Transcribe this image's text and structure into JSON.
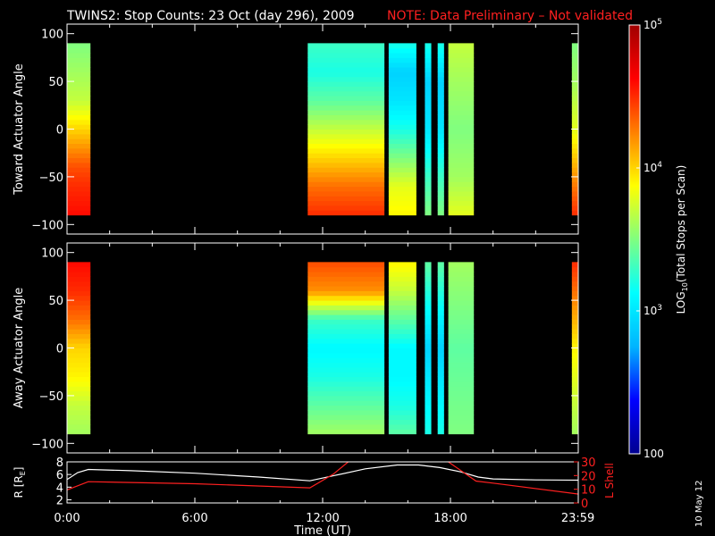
{
  "header": {
    "title": "TWINS2: Stop Counts: 23 Oct (day 296), 2009",
    "note": "NOTE: Data Preliminary – Not validated"
  },
  "side_label": "10 May 12",
  "colorbar": {
    "label": "LOG10(Total Stops per Scan)",
    "label_parts": [
      "LOG",
      "10",
      "(Total Stops per Scan)"
    ],
    "ticks": [
      {
        "value": 100,
        "label": "100"
      },
      {
        "value": 1000,
        "label": "10^3"
      },
      {
        "value": 10000,
        "label": "10^4"
      },
      {
        "value": 100000,
        "label": "10^5"
      }
    ],
    "range": [
      100,
      100000
    ],
    "scale": "log",
    "colormap": [
      "#00008f",
      "#0000ff",
      "#00b4ff",
      "#00ffff",
      "#80ff80",
      "#ffff00",
      "#ff8000",
      "#ff0000",
      "#a00000"
    ]
  },
  "chart_data": [
    {
      "type": "heatmap",
      "ylabel": "Toward Actuator Angle",
      "ylim": [
        -110,
        110
      ],
      "yticks": [
        100,
        50,
        0,
        -50,
        -100
      ],
      "xlim": [
        0,
        24
      ],
      "data_angle_range": [
        -90,
        90
      ],
      "blocks": [
        {
          "x0": 0.0,
          "x1": 1.1,
          "profile": [
            [
              -90,
              4.6
            ],
            [
              -60,
              4.5
            ],
            [
              -40,
              4.4
            ],
            [
              -20,
              4.2
            ],
            [
              0,
              4.0
            ],
            [
              30,
              3.7
            ],
            [
              60,
              3.6
            ],
            [
              90,
              3.5
            ]
          ]
        },
        {
          "x0": 11.3,
          "x1": 14.9,
          "profile": [
            [
              -90,
              4.5
            ],
            [
              -60,
              4.3
            ],
            [
              -40,
              4.1
            ],
            [
              -20,
              3.9
            ],
            [
              0,
              3.7
            ],
            [
              30,
              3.4
            ],
            [
              60,
              3.2
            ],
            [
              90,
              3.3
            ]
          ]
        },
        {
          "x0": 15.1,
          "x1": 16.4,
          "profile": [
            [
              -90,
              3.9
            ],
            [
              -60,
              3.8
            ],
            [
              -40,
              3.6
            ],
            [
              -20,
              3.4
            ],
            [
              0,
              3.2
            ],
            [
              30,
              3.0
            ],
            [
              60,
              2.9
            ],
            [
              90,
              3.2
            ]
          ]
        },
        {
          "x0": 16.8,
          "x1": 17.1,
          "profile": [
            [
              -90,
              3.5
            ],
            [
              -50,
              3.3
            ],
            [
              0,
              3.0
            ],
            [
              50,
              2.9
            ],
            [
              90,
              3.2
            ]
          ]
        },
        {
          "x0": 17.4,
          "x1": 17.7,
          "profile": [
            [
              -90,
              3.5
            ],
            [
              -50,
              3.3
            ],
            [
              0,
              3.0
            ],
            [
              50,
              2.9
            ],
            [
              90,
              3.2
            ]
          ]
        },
        {
          "x0": 17.9,
          "x1": 19.1,
          "profile": [
            [
              -90,
              3.8
            ],
            [
              -50,
              3.6
            ],
            [
              0,
              3.5
            ],
            [
              50,
              3.6
            ],
            [
              90,
              3.7
            ]
          ]
        },
        {
          "x0": 23.7,
          "x1": 24.0,
          "profile": [
            [
              -90,
              4.5
            ],
            [
              -50,
              4.2
            ],
            [
              0,
              3.8
            ],
            [
              50,
              3.6
            ],
            [
              90,
              3.5
            ]
          ]
        }
      ]
    },
    {
      "type": "heatmap",
      "ylabel": "Away Actuator Angle",
      "ylim": [
        -110,
        110
      ],
      "yticks": [
        100,
        50,
        0,
        -50,
        -100
      ],
      "xlim": [
        0,
        24
      ],
      "data_angle_range": [
        -90,
        90
      ],
      "blocks": [
        {
          "x0": 0.0,
          "x1": 1.1,
          "profile": [
            [
              -90,
              3.6
            ],
            [
              -60,
              3.7
            ],
            [
              -30,
              3.9
            ],
            [
              0,
              4.0
            ],
            [
              30,
              4.3
            ],
            [
              60,
              4.5
            ],
            [
              90,
              4.6
            ]
          ]
        },
        {
          "x0": 11.3,
          "x1": 14.9,
          "profile": [
            [
              -90,
              3.6
            ],
            [
              -60,
              3.4
            ],
            [
              -30,
              3.2
            ],
            [
              0,
              3.1
            ],
            [
              30,
              3.3
            ],
            [
              60,
              4.2
            ],
            [
              90,
              4.4
            ]
          ]
        },
        {
          "x0": 15.1,
          "x1": 16.4,
          "profile": [
            [
              -90,
              3.4
            ],
            [
              -60,
              3.2
            ],
            [
              -30,
              3.1
            ],
            [
              0,
              3.1
            ],
            [
              30,
              3.4
            ],
            [
              60,
              3.7
            ],
            [
              90,
              3.9
            ]
          ]
        },
        {
          "x0": 16.8,
          "x1": 17.1,
          "profile": [
            [
              -90,
              3.2
            ],
            [
              0,
              2.9
            ],
            [
              90,
              3.4
            ]
          ]
        },
        {
          "x0": 17.4,
          "x1": 17.7,
          "profile": [
            [
              -90,
              3.2
            ],
            [
              0,
              2.9
            ],
            [
              90,
              3.4
            ]
          ]
        },
        {
          "x0": 17.9,
          "x1": 19.1,
          "profile": [
            [
              -90,
              3.5
            ],
            [
              0,
              3.4
            ],
            [
              90,
              3.6
            ]
          ]
        },
        {
          "x0": 23.7,
          "x1": 24.0,
          "profile": [
            [
              -90,
              3.6
            ],
            [
              0,
              3.9
            ],
            [
              90,
              4.5
            ]
          ]
        }
      ]
    },
    {
      "type": "line",
      "xlabel": "Time (UT)",
      "xlim": [
        0,
        24
      ],
      "xticks": [
        {
          "value": 0,
          "label": "0:00"
        },
        {
          "value": 6,
          "label": "6:00"
        },
        {
          "value": 12,
          "label": "12:00"
        },
        {
          "value": 18,
          "label": "18:00"
        },
        {
          "value": 23.983,
          "label": "23:59"
        }
      ],
      "ylabel": "R [RE]",
      "ylabel_parts": [
        "R [R",
        "E",
        "]"
      ],
      "ylim": [
        1.5,
        8
      ],
      "yticks": [
        2,
        4,
        6,
        8
      ],
      "ylabel_right": "L Shell",
      "ylim_right": [
        0,
        30
      ],
      "yticks_right": [
        0,
        10,
        20,
        30
      ],
      "series": [
        {
          "axis": "left",
          "color": "#ffffff",
          "points": [
            [
              0,
              5.2
            ],
            [
              0.5,
              6.3
            ],
            [
              1,
              6.8
            ],
            [
              3,
              6.6
            ],
            [
              6,
              6.2
            ],
            [
              9,
              5.6
            ],
            [
              11.4,
              5.0
            ],
            [
              12.5,
              5.8
            ],
            [
              14,
              6.9
            ],
            [
              15.5,
              7.5
            ],
            [
              16.5,
              7.5
            ],
            [
              17.5,
              7.1
            ],
            [
              18.5,
              6.4
            ],
            [
              19.3,
              5.6
            ],
            [
              20,
              5.3
            ],
            [
              22,
              5.15
            ],
            [
              23.98,
              5.1
            ]
          ]
        },
        {
          "axis": "right",
          "color": "#ff2020",
          "segments": [
            [
              [
                0,
                9.5
              ],
              [
                1,
                15.5
              ],
              [
                6,
                14
              ],
              [
                11.4,
                11
              ],
              [
                12.5,
                21
              ],
              [
                13.2,
                30
              ]
            ],
            [
              [
                17.9,
                30
              ],
              [
                19.2,
                16
              ],
              [
                20,
                14.5
              ],
              [
                23.98,
                6.5
              ]
            ]
          ]
        }
      ]
    }
  ]
}
